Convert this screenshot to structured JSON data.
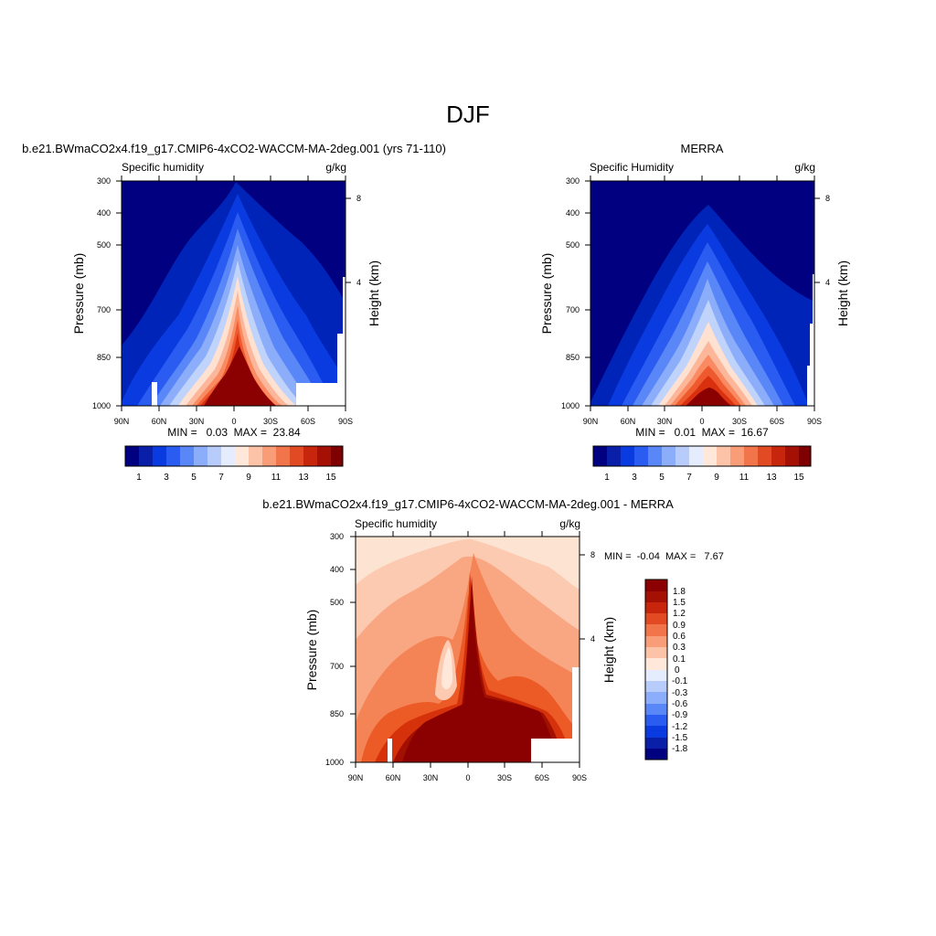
{
  "page": {
    "title": "DJF"
  },
  "chart_data": [
    {
      "type": "heatmap",
      "id": "model",
      "title": "b.e21.BWmaCO2x4.f19_g17.CMIP6-4xCO2-WACCM-MA-2deg.001 (yrs 71-110)",
      "left_label": "Specific humidity",
      "right_label": "g/kg",
      "ylabel": "Pressure (mb)",
      "ylabel_right": "Height (km)",
      "x_ticks": [
        "90N",
        "60N",
        "30N",
        "0",
        "30S",
        "60S",
        "90S"
      ],
      "y_ticks": [
        "300",
        "400",
        "500",
        "700",
        "850",
        "1000"
      ],
      "height_ticks": [
        "8",
        "4"
      ],
      "stats_text": "MIN =   0.03  MAX =  23.84",
      "min": 0.03,
      "max": 23.84,
      "colorbar_labels": [
        "1",
        "3",
        "5",
        "7",
        "9",
        "11",
        "13",
        "15"
      ]
    },
    {
      "type": "heatmap",
      "id": "obs",
      "title": "MERRA",
      "left_label": "Specific Humidity",
      "right_label": "g/kg",
      "ylabel": "Pressure (mb)",
      "ylabel_right": "Height (km)",
      "x_ticks": [
        "90N",
        "60N",
        "30N",
        "0",
        "30S",
        "60S",
        "90S"
      ],
      "y_ticks": [
        "300",
        "400",
        "500",
        "700",
        "850",
        "1000"
      ],
      "height_ticks": [
        "8",
        "4"
      ],
      "stats_text": "MIN =   0.01  MAX =  16.67",
      "min": 0.01,
      "max": 16.67,
      "colorbar_labels": [
        "1",
        "3",
        "5",
        "7",
        "9",
        "11",
        "13",
        "15"
      ]
    },
    {
      "type": "heatmap",
      "id": "diff",
      "title": "b.e21.BWmaCO2x4.f19_g17.CMIP6-4xCO2-WACCM-MA-2deg.001 - MERRA",
      "left_label": "Specific humidity",
      "right_label": "g/kg",
      "ylabel": "Pressure (mb)",
      "ylabel_right": "Height (km)",
      "x_ticks": [
        "90N",
        "60N",
        "30N",
        "0",
        "30S",
        "60S",
        "90S"
      ],
      "y_ticks": [
        "300",
        "400",
        "500",
        "700",
        "850",
        "1000"
      ],
      "height_ticks": [
        "8",
        "4"
      ],
      "stats_text": "MIN =  -0.04  MAX =   7.67",
      "min": -0.04,
      "max": 7.67,
      "colorbar_labels": [
        "1.8",
        "1.5",
        "1.2",
        "0.9",
        "0.6",
        "0.3",
        "0.1",
        "0",
        "-0.1",
        "-0.3",
        "-0.6",
        "-0.9",
        "-1.2",
        "-1.5",
        "-1.8"
      ]
    }
  ]
}
